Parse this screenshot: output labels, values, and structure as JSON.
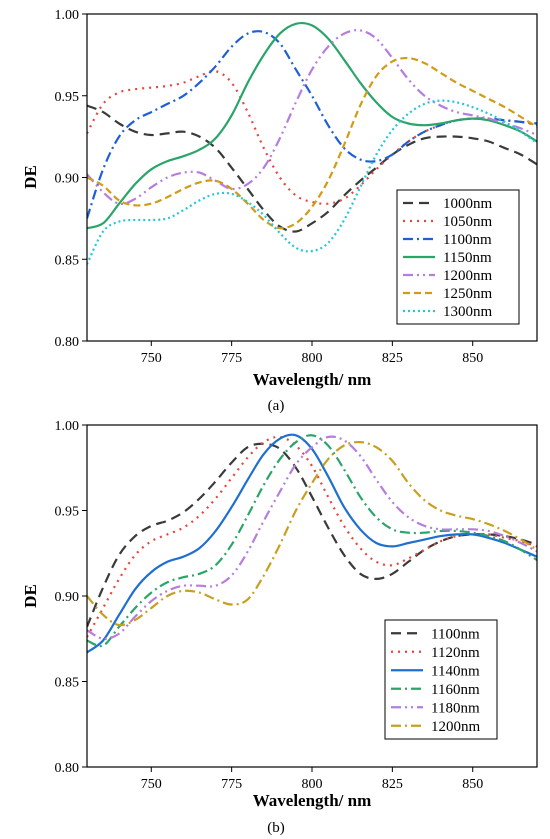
{
  "chart_data": [
    {
      "type": "line",
      "panel_label": "(a)",
      "xlabel": "Wavelength/ nm",
      "ylabel": "DE",
      "xlim": [
        730,
        870
      ],
      "ylim": [
        0.8,
        1.0
      ],
      "xticks": [
        750,
        775,
        800,
        825,
        850
      ],
      "yticks": [
        0.8,
        0.85,
        0.9,
        0.95,
        1.0
      ],
      "ytick_labels": [
        "0.80",
        "0.85",
        "0.90",
        "0.95",
        "1.00"
      ],
      "legend_position": "lower-right",
      "grid": false,
      "series": [
        {
          "name": "1000nm",
          "color": "#3a3a3a",
          "dash": "10,6",
          "x": [
            730,
            735,
            740,
            745,
            750,
            755,
            760,
            765,
            770,
            775,
            780,
            785,
            790,
            795,
            800,
            805,
            810,
            815,
            820,
            825,
            830,
            835,
            840,
            845,
            850,
            855,
            860,
            865,
            870
          ],
          "y": [
            0.944,
            0.94,
            0.933,
            0.928,
            0.926,
            0.927,
            0.928,
            0.925,
            0.918,
            0.906,
            0.893,
            0.88,
            0.87,
            0.867,
            0.872,
            0.879,
            0.889,
            0.898,
            0.906,
            0.914,
            0.92,
            0.924,
            0.925,
            0.925,
            0.924,
            0.922,
            0.918,
            0.914,
            0.908
          ]
        },
        {
          "name": "1050nm",
          "color": "#e8453c",
          "dash": "2,5",
          "x": [
            730,
            735,
            740,
            745,
            750,
            755,
            760,
            765,
            770,
            775,
            780,
            785,
            790,
            795,
            800,
            805,
            810,
            815,
            820,
            825,
            830,
            835,
            840,
            845,
            850,
            855,
            860,
            865,
            870
          ],
          "y": [
            0.927,
            0.945,
            0.952,
            0.954,
            0.955,
            0.956,
            0.958,
            0.962,
            0.965,
            0.958,
            0.94,
            0.918,
            0.9,
            0.889,
            0.885,
            0.884,
            0.887,
            0.895,
            0.905,
            0.914,
            0.922,
            0.928,
            0.932,
            0.935,
            0.936,
            0.936,
            0.935,
            0.934,
            0.932
          ]
        },
        {
          "name": "1100nm",
          "color": "#1f5fd6",
          "dash": "10,4,2,4",
          "x": [
            730,
            735,
            740,
            745,
            750,
            755,
            760,
            765,
            770,
            775,
            780,
            785,
            790,
            795,
            800,
            805,
            810,
            815,
            820,
            825,
            830,
            835,
            840,
            845,
            850,
            855,
            860,
            865,
            870
          ],
          "y": [
            0.875,
            0.905,
            0.925,
            0.935,
            0.94,
            0.945,
            0.95,
            0.958,
            0.968,
            0.98,
            0.988,
            0.989,
            0.982,
            0.966,
            0.95,
            0.932,
            0.918,
            0.911,
            0.91,
            0.914,
            0.922,
            0.928,
            0.932,
            0.935,
            0.936,
            0.936,
            0.935,
            0.934,
            0.933
          ]
        },
        {
          "name": "1150nm",
          "color": "#2aa56a",
          "dash": "",
          "x": [
            730,
            735,
            740,
            745,
            750,
            755,
            760,
            765,
            770,
            775,
            780,
            785,
            790,
            795,
            800,
            805,
            810,
            815,
            820,
            825,
            830,
            835,
            840,
            845,
            850,
            855,
            860,
            865,
            870
          ],
          "y": [
            0.869,
            0.872,
            0.884,
            0.896,
            0.905,
            0.91,
            0.913,
            0.917,
            0.924,
            0.938,
            0.958,
            0.975,
            0.988,
            0.994,
            0.993,
            0.985,
            0.972,
            0.958,
            0.946,
            0.937,
            0.933,
            0.932,
            0.933,
            0.935,
            0.936,
            0.935,
            0.932,
            0.928,
            0.922
          ]
        },
        {
          "name": "1200nm",
          "color": "#b57de0",
          "dash": "10,4,2,4,2,4",
          "x": [
            730,
            735,
            740,
            745,
            750,
            755,
            760,
            765,
            770,
            775,
            780,
            785,
            790,
            795,
            800,
            805,
            810,
            815,
            820,
            825,
            830,
            835,
            840,
            845,
            850,
            855,
            860,
            865,
            870
          ],
          "y": [
            0.902,
            0.891,
            0.884,
            0.887,
            0.894,
            0.9,
            0.903,
            0.903,
            0.898,
            0.893,
            0.896,
            0.906,
            0.924,
            0.946,
            0.966,
            0.98,
            0.988,
            0.99,
            0.985,
            0.973,
            0.96,
            0.95,
            0.944,
            0.94,
            0.938,
            0.936,
            0.933,
            0.93,
            0.926
          ]
        },
        {
          "name": "1250nm",
          "color": "#d29b14",
          "dash": "7,4",
          "x": [
            730,
            735,
            740,
            745,
            750,
            755,
            760,
            765,
            770,
            775,
            780,
            785,
            790,
            795,
            800,
            805,
            810,
            815,
            820,
            825,
            830,
            835,
            840,
            845,
            850,
            855,
            860,
            865,
            870
          ],
          "y": [
            0.9,
            0.895,
            0.886,
            0.883,
            0.884,
            0.888,
            0.893,
            0.897,
            0.898,
            0.893,
            0.884,
            0.874,
            0.869,
            0.872,
            0.882,
            0.898,
            0.92,
            0.944,
            0.962,
            0.971,
            0.973,
            0.97,
            0.964,
            0.958,
            0.953,
            0.948,
            0.943,
            0.937,
            0.931
          ]
        },
        {
          "name": "1300nm",
          "color": "#25c6d6",
          "dash": "2,3",
          "x": [
            730,
            735,
            740,
            745,
            750,
            755,
            760,
            765,
            770,
            775,
            780,
            785,
            790,
            795,
            800,
            805,
            810,
            815,
            820,
            825,
            830,
            835,
            840,
            845,
            850,
            855,
            860,
            865,
            870
          ],
          "y": [
            0.847,
            0.867,
            0.873,
            0.874,
            0.874,
            0.875,
            0.88,
            0.886,
            0.89,
            0.89,
            0.885,
            0.877,
            0.866,
            0.857,
            0.855,
            0.86,
            0.874,
            0.894,
            0.914,
            0.929,
            0.939,
            0.945,
            0.947,
            0.946,
            0.943,
            0.939,
            0.934,
            0.928,
            0.921
          ]
        }
      ]
    },
    {
      "type": "line",
      "panel_label": "(b)",
      "xlabel": "Wavelength/ nm",
      "ylabel": "DE",
      "xlim": [
        730,
        870
      ],
      "ylim": [
        0.8,
        1.0
      ],
      "xticks": [
        750,
        775,
        800,
        825,
        850
      ],
      "yticks": [
        0.8,
        0.85,
        0.9,
        0.95,
        1.0
      ],
      "ytick_labels": [
        "0.80",
        "0.85",
        "0.90",
        "0.95",
        "1.00"
      ],
      "legend_position": "lower-right",
      "grid": false,
      "series": [
        {
          "name": "1100nm",
          "color": "#3a3a3a",
          "dash": "10,6",
          "x": [
            730,
            735,
            740,
            745,
            750,
            755,
            760,
            765,
            770,
            775,
            780,
            785,
            790,
            795,
            800,
            805,
            810,
            815,
            820,
            825,
            830,
            835,
            840,
            845,
            850,
            855,
            860,
            865,
            870
          ],
          "y": [
            0.882,
            0.905,
            0.924,
            0.935,
            0.941,
            0.944,
            0.949,
            0.957,
            0.967,
            0.978,
            0.987,
            0.989,
            0.986,
            0.975,
            0.958,
            0.94,
            0.924,
            0.913,
            0.91,
            0.913,
            0.92,
            0.927,
            0.932,
            0.935,
            0.936,
            0.936,
            0.935,
            0.933,
            0.93
          ]
        },
        {
          "name": "1120nm",
          "color": "#e8453c",
          "dash": "2,5",
          "x": [
            730,
            735,
            740,
            745,
            750,
            755,
            760,
            765,
            770,
            775,
            780,
            785,
            790,
            795,
            800,
            805,
            810,
            815,
            820,
            825,
            830,
            835,
            840,
            845,
            850,
            855,
            860,
            865,
            870
          ],
          "y": [
            0.876,
            0.893,
            0.91,
            0.924,
            0.932,
            0.936,
            0.94,
            0.947,
            0.957,
            0.969,
            0.981,
            0.99,
            0.993,
            0.988,
            0.976,
            0.958,
            0.941,
            0.928,
            0.92,
            0.918,
            0.922,
            0.927,
            0.932,
            0.935,
            0.936,
            0.936,
            0.934,
            0.932,
            0.929
          ]
        },
        {
          "name": "1140nm",
          "color": "#1f6fd0",
          "dash": "",
          "x": [
            730,
            735,
            740,
            745,
            750,
            755,
            760,
            765,
            770,
            775,
            780,
            785,
            790,
            795,
            800,
            805,
            810,
            815,
            820,
            825,
            830,
            835,
            840,
            845,
            850,
            855,
            860,
            865,
            870
          ],
          "y": [
            0.867,
            0.874,
            0.889,
            0.904,
            0.914,
            0.92,
            0.923,
            0.928,
            0.938,
            0.952,
            0.968,
            0.983,
            0.992,
            0.994,
            0.986,
            0.97,
            0.952,
            0.939,
            0.931,
            0.929,
            0.931,
            0.933,
            0.935,
            0.936,
            0.936,
            0.934,
            0.931,
            0.927,
            0.923
          ]
        },
        {
          "name": "1160nm",
          "color": "#2aa56a",
          "dash": "10,4,2,4",
          "x": [
            730,
            735,
            740,
            745,
            750,
            755,
            760,
            765,
            770,
            775,
            780,
            785,
            790,
            795,
            800,
            805,
            810,
            815,
            820,
            825,
            830,
            835,
            840,
            845,
            850,
            855,
            860,
            865,
            870
          ],
          "y": [
            0.874,
            0.871,
            0.882,
            0.893,
            0.902,
            0.908,
            0.911,
            0.913,
            0.918,
            0.93,
            0.947,
            0.965,
            0.98,
            0.99,
            0.994,
            0.988,
            0.974,
            0.958,
            0.946,
            0.939,
            0.937,
            0.937,
            0.938,
            0.938,
            0.937,
            0.935,
            0.932,
            0.927,
            0.921
          ]
        },
        {
          "name": "1180nm",
          "color": "#b57de0",
          "dash": "10,4,2,4,2,4",
          "x": [
            730,
            735,
            740,
            745,
            750,
            755,
            760,
            765,
            770,
            775,
            780,
            785,
            790,
            795,
            800,
            805,
            810,
            815,
            820,
            825,
            830,
            835,
            840,
            845,
            850,
            855,
            860,
            865,
            870
          ],
          "y": [
            0.88,
            0.875,
            0.878,
            0.888,
            0.897,
            0.903,
            0.906,
            0.906,
            0.906,
            0.912,
            0.926,
            0.944,
            0.961,
            0.977,
            0.987,
            0.993,
            0.991,
            0.982,
            0.968,
            0.955,
            0.946,
            0.941,
            0.939,
            0.939,
            0.939,
            0.938,
            0.935,
            0.931,
            0.926
          ]
        },
        {
          "name": "1200nm",
          "color": "#c8a020",
          "dash": "10,4,2,4",
          "x": [
            730,
            735,
            740,
            745,
            750,
            755,
            760,
            765,
            770,
            775,
            780,
            785,
            790,
            795,
            800,
            805,
            810,
            815,
            820,
            825,
            830,
            835,
            840,
            845,
            850,
            855,
            860,
            865,
            870
          ],
          "y": [
            0.9,
            0.889,
            0.883,
            0.886,
            0.893,
            0.9,
            0.903,
            0.902,
            0.898,
            0.895,
            0.898,
            0.912,
            0.93,
            0.95,
            0.966,
            0.98,
            0.988,
            0.99,
            0.987,
            0.979,
            0.966,
            0.956,
            0.95,
            0.947,
            0.945,
            0.942,
            0.938,
            0.933,
            0.927
          ]
        }
      ]
    }
  ]
}
